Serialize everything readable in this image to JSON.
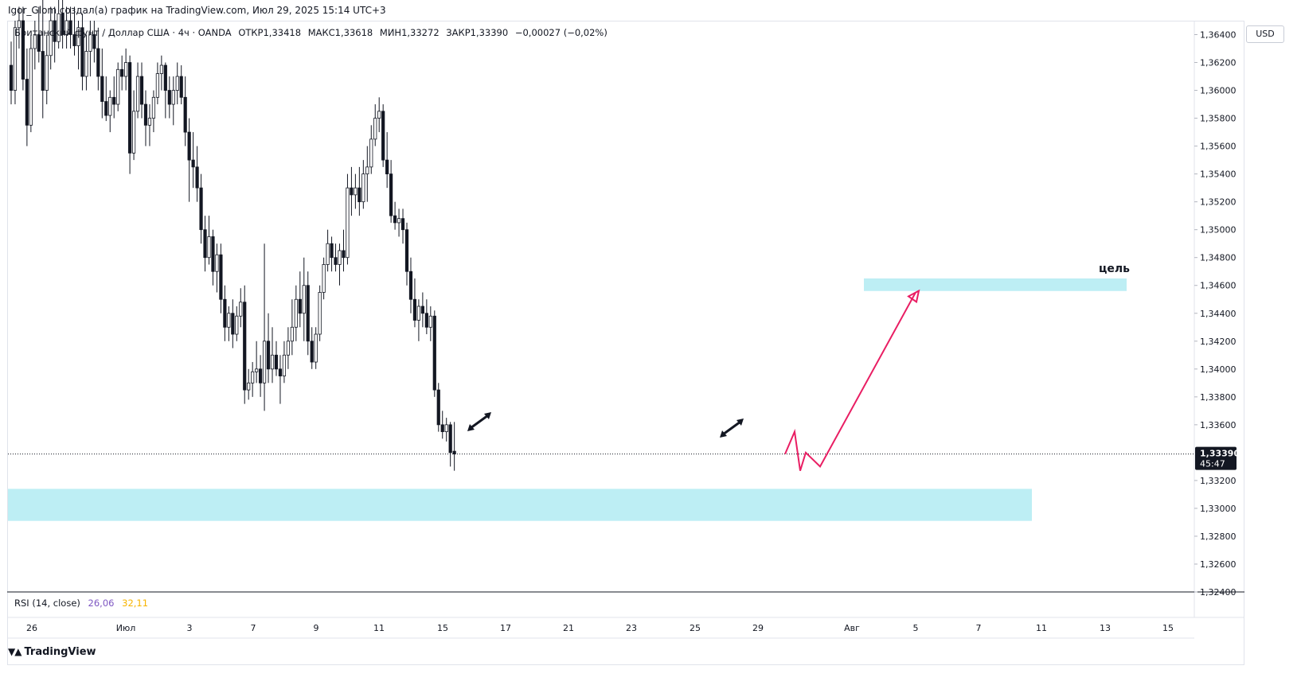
{
  "header": {
    "author_line": "Igor_Glom создал(а) график на TradingView.com, Июл 29, 2025 15:14 UTC+3"
  },
  "legend": {
    "symbol": "Британский фунт / Доллар США · 4ч · OANDA",
    "open": "ОТКР1,33418",
    "high": "МАКС1,33618",
    "low": "МИН1,33272",
    "close": "ЗАКР1,33390",
    "change": "−0,00027 (−0,02%)"
  },
  "currency_button": "USD",
  "price_axis": {
    "ticks": [
      "1,36400",
      "1,36200",
      "1,36000",
      "1,35800",
      "1,35600",
      "1,35400",
      "1,35200",
      "1,35000",
      "1,34800",
      "1,34600",
      "1,34400",
      "1,34200",
      "1,34000",
      "1,33800",
      "1,33600",
      "1,33200",
      "1,33000",
      "1,32800",
      "1,32600",
      "1,32400"
    ],
    "last_price": "1,33390",
    "countdown": "45:47"
  },
  "time_axis": {
    "labels": [
      "26",
      "Июл",
      "3",
      "7",
      "9",
      "11",
      "15",
      "17",
      "21",
      "23",
      "25",
      "29",
      "Авг",
      "5",
      "7",
      "11",
      "13",
      "15"
    ]
  },
  "indicator": {
    "name": "RSI (14, close)",
    "value1": "26,06",
    "value2": "32,11"
  },
  "annotations": {
    "target_label": "цель",
    "zone_color": "#b2ebf2",
    "arrow_color": "#e91e63"
  },
  "branding": {
    "logo_text": "TradingView"
  },
  "chart_data": {
    "type": "candlestick",
    "symbol": "GBPUSD",
    "timeframe": "4h",
    "ylim": [
      1.324,
      1.365
    ],
    "last_price": 1.3339,
    "candles": [
      [
        1.3618,
        1.3635,
        1.359,
        1.36
      ],
      [
        1.36,
        1.365,
        1.359,
        1.3645
      ],
      [
        1.3645,
        1.366,
        1.363,
        1.365
      ],
      [
        1.365,
        1.366,
        1.36,
        1.3608
      ],
      [
        1.3608,
        1.363,
        1.356,
        1.3575
      ],
      [
        1.3575,
        1.364,
        1.357,
        1.363
      ],
      [
        1.363,
        1.365,
        1.3615,
        1.364
      ],
      [
        1.364,
        1.366,
        1.362,
        1.3628
      ],
      [
        1.3628,
        1.367,
        1.358,
        1.36
      ],
      [
        1.36,
        1.364,
        1.359,
        1.3625
      ],
      [
        1.3625,
        1.366,
        1.3615,
        1.365
      ],
      [
        1.365,
        1.366,
        1.362,
        1.3635
      ],
      [
        1.3635,
        1.368,
        1.363,
        1.3655
      ],
      [
        1.3655,
        1.367,
        1.363,
        1.364
      ],
      [
        1.364,
        1.366,
        1.363,
        1.365
      ],
      [
        1.365,
        1.366,
        1.363,
        1.364
      ],
      [
        1.364,
        1.366,
        1.3625,
        1.3632
      ],
      [
        1.3632,
        1.365,
        1.3615,
        1.3645
      ],
      [
        1.3645,
        1.3655,
        1.36,
        1.361
      ],
      [
        1.361,
        1.364,
        1.36,
        1.3628
      ],
      [
        1.3628,
        1.365,
        1.361,
        1.364
      ],
      [
        1.364,
        1.365,
        1.362,
        1.363
      ],
      [
        1.363,
        1.3645,
        1.36,
        1.361
      ],
      [
        1.361,
        1.363,
        1.358,
        1.3592
      ],
      [
        1.3592,
        1.361,
        1.3578,
        1.3582
      ],
      [
        1.3582,
        1.36,
        1.357,
        1.3595
      ],
      [
        1.3595,
        1.361,
        1.358,
        1.359
      ],
      [
        1.359,
        1.362,
        1.3585,
        1.3615
      ],
      [
        1.3615,
        1.3625,
        1.36,
        1.361
      ],
      [
        1.361,
        1.363,
        1.36,
        1.362
      ],
      [
        1.362,
        1.3625,
        1.354,
        1.3555
      ],
      [
        1.3555,
        1.36,
        1.355,
        1.3585
      ],
      [
        1.3585,
        1.362,
        1.358,
        1.361
      ],
      [
        1.361,
        1.362,
        1.358,
        1.359
      ],
      [
        1.359,
        1.36,
        1.356,
        1.3575
      ],
      [
        1.3575,
        1.359,
        1.356,
        1.358
      ],
      [
        1.358,
        1.36,
        1.357,
        1.3595
      ],
      [
        1.3595,
        1.362,
        1.359,
        1.3612
      ],
      [
        1.3612,
        1.3625,
        1.36,
        1.3618
      ],
      [
        1.3618,
        1.362,
        1.358,
        1.36
      ],
      [
        1.36,
        1.361,
        1.358,
        1.359
      ],
      [
        1.359,
        1.361,
        1.3575,
        1.36
      ],
      [
        1.36,
        1.362,
        1.359,
        1.361
      ],
      [
        1.361,
        1.3618,
        1.359,
        1.3595
      ],
      [
        1.3595,
        1.361,
        1.356,
        1.357
      ],
      [
        1.357,
        1.358,
        1.352,
        1.355
      ],
      [
        1.355,
        1.357,
        1.353,
        1.3545
      ],
      [
        1.3545,
        1.356,
        1.352,
        1.353
      ],
      [
        1.353,
        1.354,
        1.349,
        1.35
      ],
      [
        1.35,
        1.351,
        1.347,
        1.348
      ],
      [
        1.348,
        1.351,
        1.3475,
        1.3495
      ],
      [
        1.3495,
        1.35,
        1.346,
        1.347
      ],
      [
        1.347,
        1.349,
        1.3455,
        1.3482
      ],
      [
        1.3482,
        1.349,
        1.344,
        1.345
      ],
      [
        1.345,
        1.346,
        1.342,
        1.343
      ],
      [
        1.343,
        1.3445,
        1.342,
        1.344
      ],
      [
        1.344,
        1.345,
        1.3415,
        1.3425
      ],
      [
        1.3425,
        1.3445,
        1.342,
        1.3438
      ],
      [
        1.3438,
        1.3458,
        1.343,
        1.3448
      ],
      [
        1.3448,
        1.346,
        1.3375,
        1.3385
      ],
      [
        1.3385,
        1.34,
        1.3378,
        1.339
      ],
      [
        1.339,
        1.3405,
        1.338,
        1.3398
      ],
      [
        1.3398,
        1.342,
        1.339,
        1.34
      ],
      [
        1.34,
        1.341,
        1.338,
        1.339
      ],
      [
        1.339,
        1.349,
        1.337,
        1.342
      ],
      [
        1.342,
        1.344,
        1.339,
        1.34
      ],
      [
        1.34,
        1.343,
        1.339,
        1.341
      ],
      [
        1.341,
        1.342,
        1.3395,
        1.34
      ],
      [
        1.34,
        1.341,
        1.3375,
        1.3395
      ],
      [
        1.3395,
        1.342,
        1.339,
        1.341
      ],
      [
        1.341,
        1.343,
        1.34,
        1.342
      ],
      [
        1.342,
        1.345,
        1.341,
        1.343
      ],
      [
        1.343,
        1.346,
        1.342,
        1.345
      ],
      [
        1.345,
        1.347,
        1.343,
        1.344
      ],
      [
        1.344,
        1.348,
        1.342,
        1.346
      ],
      [
        1.346,
        1.347,
        1.341,
        1.342
      ],
      [
        1.342,
        1.343,
        1.34,
        1.3405
      ],
      [
        1.3405,
        1.343,
        1.34,
        1.3425
      ],
      [
        1.3425,
        1.346,
        1.342,
        1.3455
      ],
      [
        1.3455,
        1.348,
        1.345,
        1.3475
      ],
      [
        1.3475,
        1.35,
        1.347,
        1.349
      ],
      [
        1.349,
        1.3495,
        1.347,
        1.348
      ],
      [
        1.348,
        1.349,
        1.347,
        1.3475
      ],
      [
        1.3475,
        1.349,
        1.346,
        1.3485
      ],
      [
        1.3485,
        1.35,
        1.347,
        1.348
      ],
      [
        1.348,
        1.354,
        1.3475,
        1.353
      ],
      [
        1.353,
        1.3545,
        1.351,
        1.3525
      ],
      [
        1.3525,
        1.354,
        1.3515,
        1.353
      ],
      [
        1.353,
        1.3545,
        1.351,
        1.352
      ],
      [
        1.352,
        1.355,
        1.3515,
        1.354
      ],
      [
        1.354,
        1.356,
        1.352,
        1.3545
      ],
      [
        1.3545,
        1.3575,
        1.354,
        1.3565
      ],
      [
        1.3565,
        1.359,
        1.356,
        1.358
      ],
      [
        1.358,
        1.3595,
        1.357,
        1.3585
      ],
      [
        1.3585,
        1.359,
        1.3545,
        1.355
      ],
      [
        1.355,
        1.357,
        1.353,
        1.354
      ],
      [
        1.354,
        1.355,
        1.3505,
        1.351
      ],
      [
        1.351,
        1.352,
        1.35,
        1.3505
      ],
      [
        1.3505,
        1.3515,
        1.3495,
        1.3508
      ],
      [
        1.3508,
        1.3515,
        1.349,
        1.35
      ],
      [
        1.35,
        1.3505,
        1.346,
        1.347
      ],
      [
        1.347,
        1.348,
        1.344,
        1.345
      ],
      [
        1.345,
        1.3465,
        1.343,
        1.3435
      ],
      [
        1.3435,
        1.345,
        1.342,
        1.3445
      ],
      [
        1.3445,
        1.3455,
        1.343,
        1.344
      ],
      [
        1.344,
        1.345,
        1.3425,
        1.343
      ],
      [
        1.343,
        1.3445,
        1.342,
        1.3438
      ],
      [
        1.3438,
        1.3442,
        1.338,
        1.3385
      ],
      [
        1.3385,
        1.339,
        1.3355,
        1.336
      ],
      [
        1.336,
        1.337,
        1.335,
        1.3355
      ],
      [
        1.3355,
        1.3365,
        1.3348,
        1.336
      ],
      [
        1.336,
        1.3362,
        1.333,
        1.334
      ],
      [
        1.3341,
        1.3362,
        1.3327,
        1.3339
      ]
    ],
    "zones": [
      {
        "from": 1.3291,
        "to": 1.3314,
        "label": ""
      },
      {
        "from": 1.3456,
        "to": 1.3465,
        "label": "цель"
      }
    ],
    "projection_path": [
      1.3339,
      1.3355,
      1.3327,
      1.334,
      1.333,
      1.3455
    ]
  }
}
